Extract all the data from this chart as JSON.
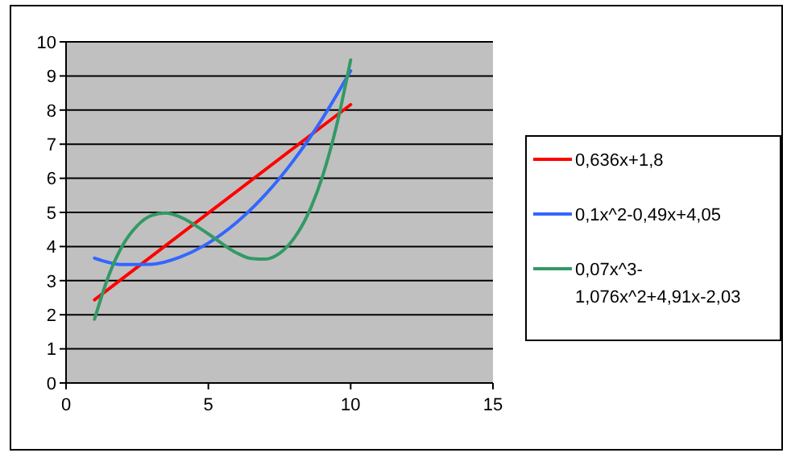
{
  "chart_data": {
    "type": "line",
    "xlim": [
      0,
      15
    ],
    "xticks": [
      0,
      5,
      10,
      15
    ],
    "ylim": [
      0,
      10
    ],
    "yticks": [
      0,
      1,
      2,
      3,
      4,
      5,
      6,
      7,
      8,
      9,
      10
    ],
    "grid": "y",
    "legend": "right",
    "marker": "none",
    "line_style": "solid",
    "series": [
      {
        "name": "0,636x+1,8",
        "color": "#ff0000",
        "x": [
          1,
          10
        ],
        "values": [
          2.44,
          8.16
        ]
      },
      {
        "name": "0,1x^2-0,49x+4,05",
        "color": "#3366ff",
        "x": [
          1,
          2,
          3,
          4,
          5,
          6,
          7,
          8,
          9,
          10
        ],
        "values": [
          3.66,
          3.47,
          3.48,
          3.69,
          4.1,
          4.71,
          5.52,
          6.53,
          7.74,
          9.15
        ]
      },
      {
        "name": "0,07x^3-1,076x^2+4,91x-2,03",
        "color": "#339966",
        "x": [
          1,
          1.5,
          2,
          2.5,
          3,
          3.5,
          4,
          5,
          6,
          6.5,
          7,
          7.5,
          8,
          8.5,
          9,
          9.5,
          10
        ],
        "values": [
          1.87,
          3.15,
          4.05,
          4.61,
          4.91,
          4.98,
          4.87,
          4.37,
          3.81,
          3.65,
          3.63,
          3.8,
          4.23,
          4.95,
          6.03,
          7.53,
          9.47
        ]
      }
    ]
  }
}
